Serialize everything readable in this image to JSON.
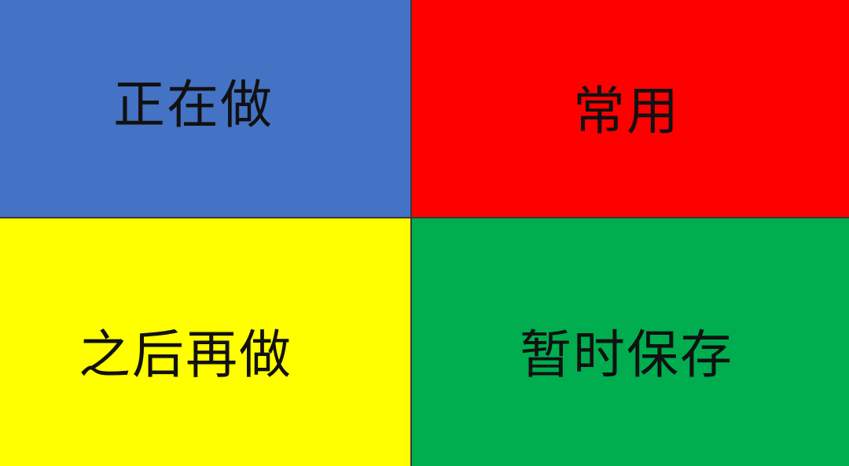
{
  "quadrants": [
    {
      "label": "正在做",
      "color": "#4472C4"
    },
    {
      "label": "常用",
      "color": "#FF0000"
    },
    {
      "label": "之后再做",
      "color": "#FFFF00"
    },
    {
      "label": "暂时保存",
      "color": "#00AD4F"
    }
  ],
  "divider_color": "#3a3a3a"
}
